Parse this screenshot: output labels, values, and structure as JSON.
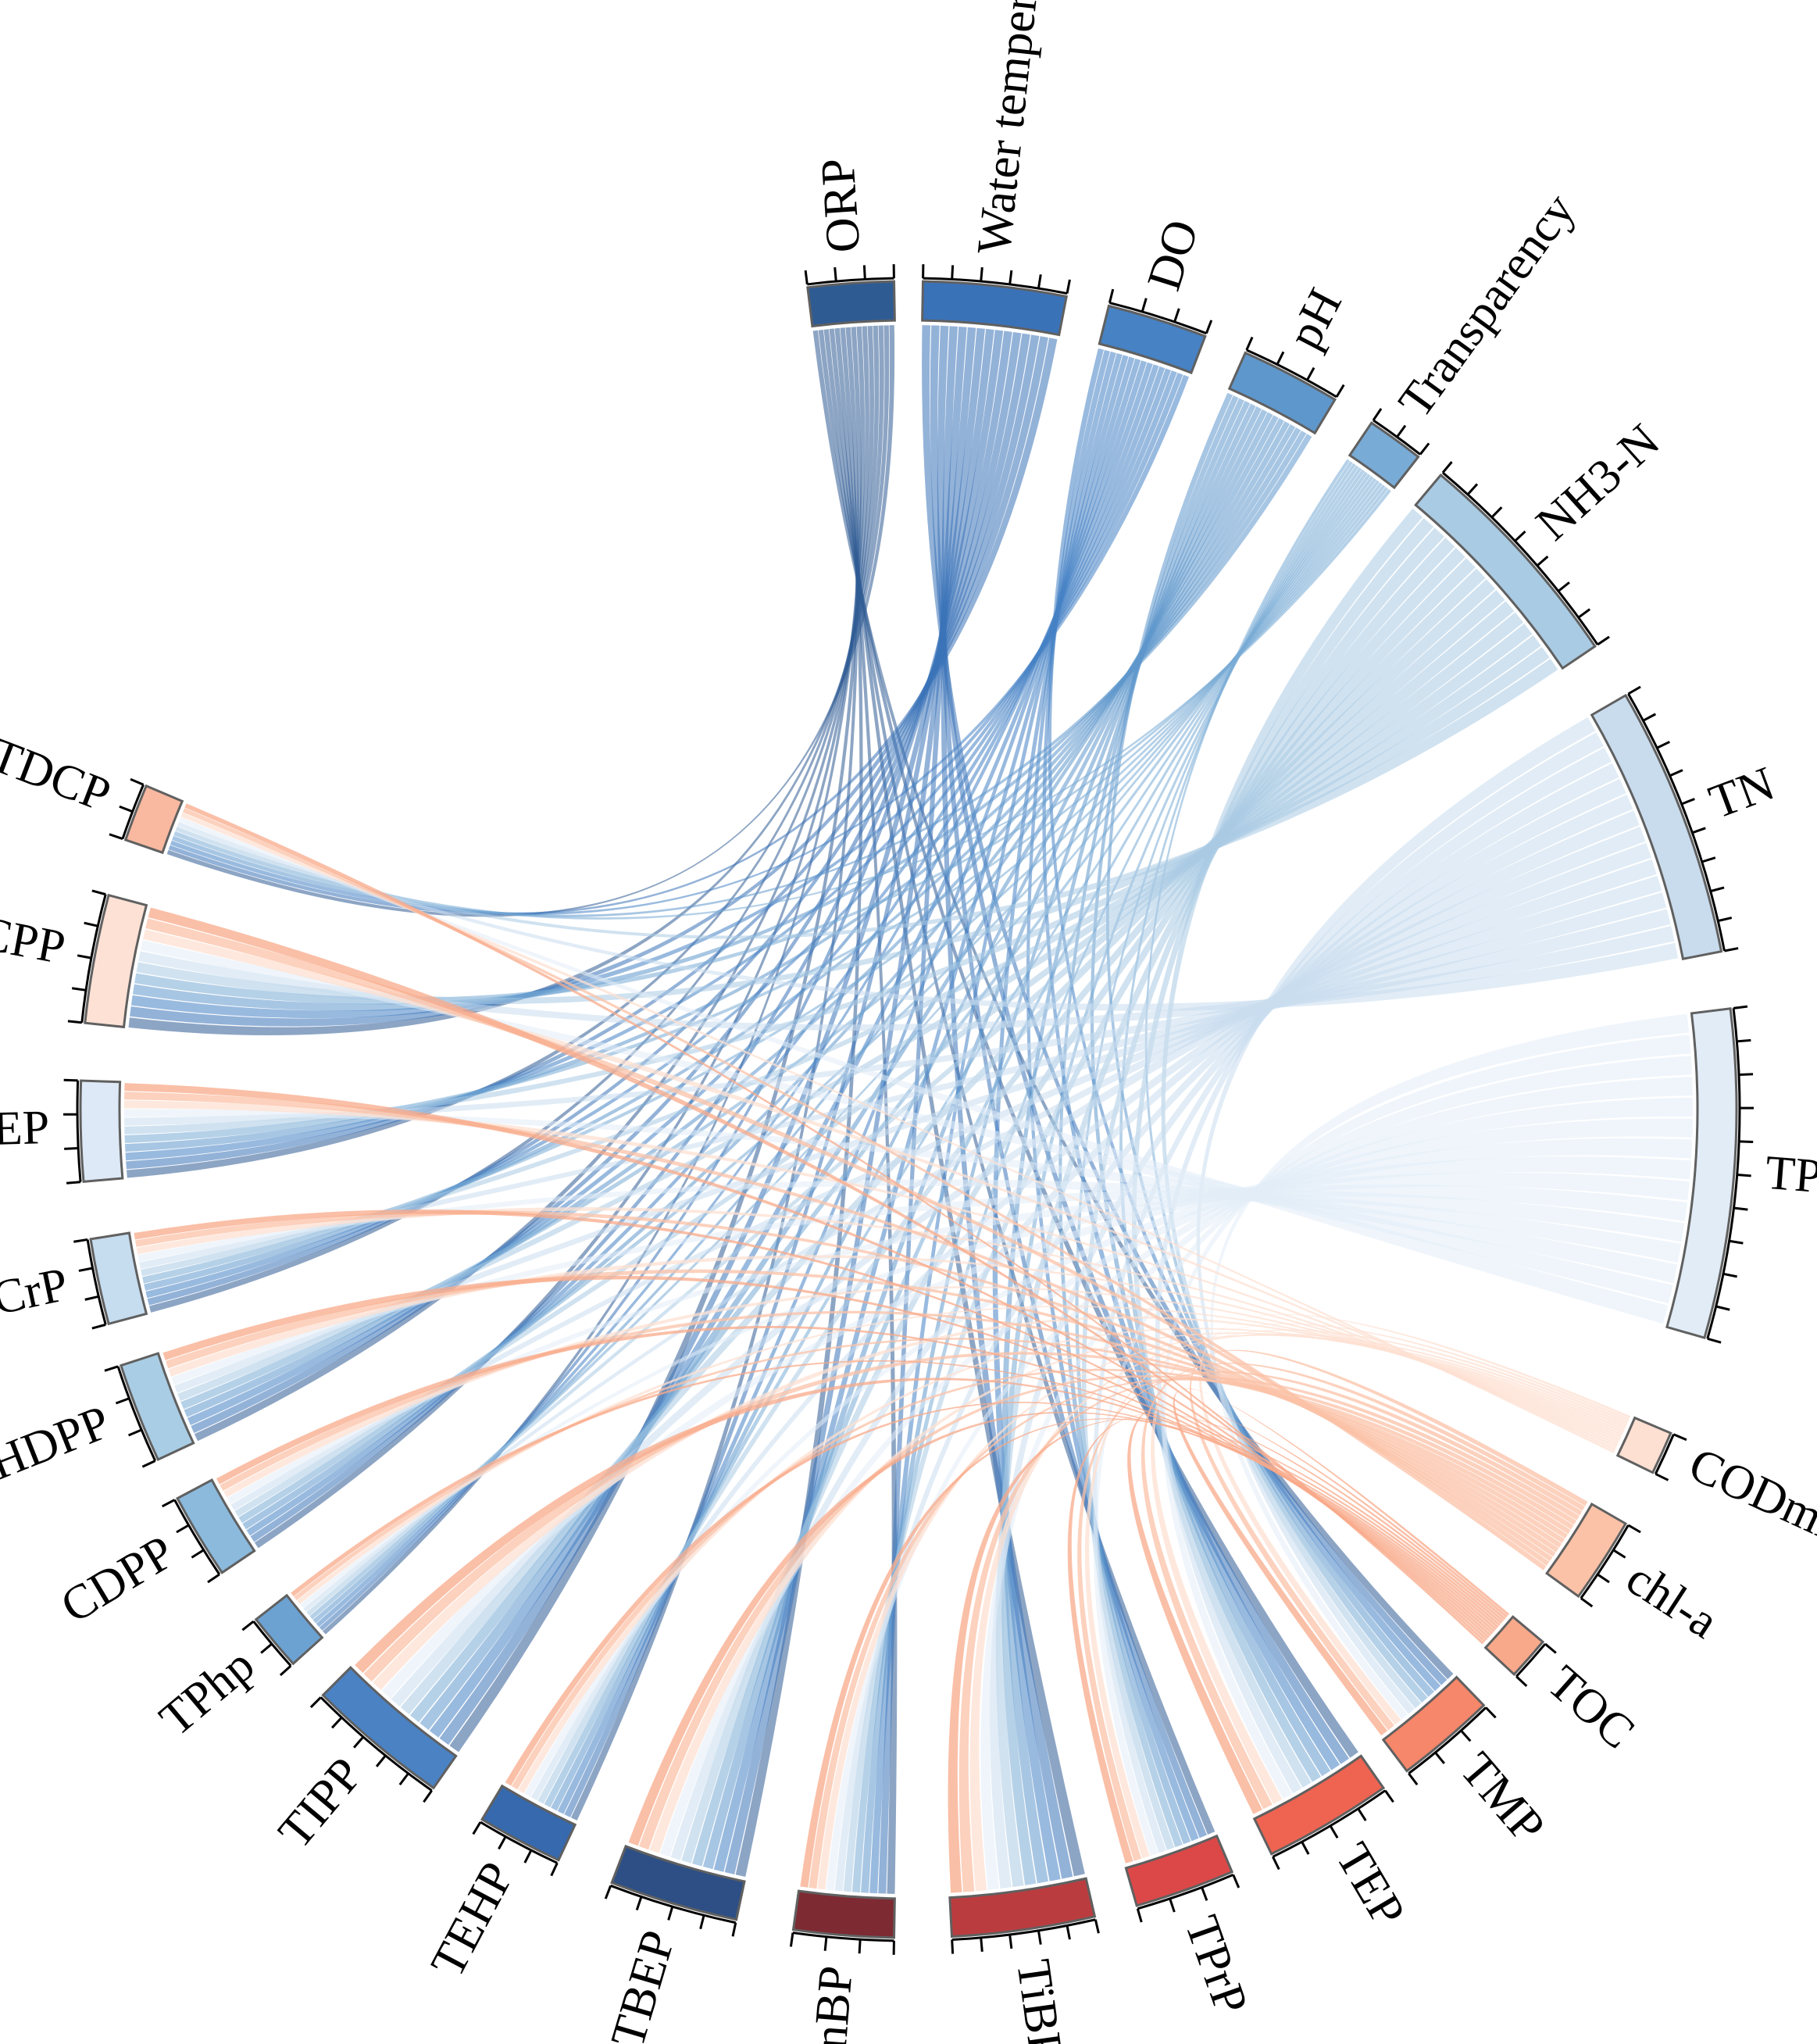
{
  "chart_data": {
    "type": "chord",
    "title": "",
    "segments": [
      {
        "name": "ORP",
        "color": "#2f5b93",
        "group": "environment"
      },
      {
        "name": "Water temperature",
        "color": "#3a72b8",
        "group": "environment"
      },
      {
        "name": "DO",
        "color": "#4682c4",
        "group": "environment"
      },
      {
        "name": "pH",
        "color": "#5e97cc",
        "group": "environment"
      },
      {
        "name": "Transparency",
        "color": "#78abd6",
        "group": "environment"
      },
      {
        "name": "NH3-N",
        "color": "#a9cbe3",
        "group": "environment"
      },
      {
        "name": "TN",
        "color": "#c9dcee",
        "group": "environment"
      },
      {
        "name": "TP",
        "color": "#e1ecf7",
        "group": "environment"
      },
      {
        "name": "CODmn",
        "color": "#fde0d2",
        "group": "environment"
      },
      {
        "name": "chl-a",
        "color": "#fbc2a7",
        "group": "environment"
      },
      {
        "name": "TOC",
        "color": "#f8a98a",
        "group": "environment"
      },
      {
        "name": "TMP",
        "color": "#f6876a",
        "group": "opfr"
      },
      {
        "name": "TEP",
        "color": "#ef6451",
        "group": "opfr"
      },
      {
        "name": "TPrP",
        "color": "#dc4848",
        "group": "opfr"
      },
      {
        "name": "TiBP",
        "color": "#bb3c3f",
        "group": "opfr"
      },
      {
        "name": "TnBP",
        "color": "#7e2a33",
        "group": "opfr"
      },
      {
        "name": "TBEP",
        "color": "#2d4f85",
        "group": "opfr"
      },
      {
        "name": "TEHP",
        "color": "#3669ad",
        "group": "opfr"
      },
      {
        "name": "TIPP",
        "color": "#4a82c3",
        "group": "opfr"
      },
      {
        "name": "TPhp",
        "color": "#6ca2d2",
        "group": "opfr"
      },
      {
        "name": "CDPP",
        "color": "#8bbadd",
        "group": "opfr"
      },
      {
        "name": "EHDPP",
        "color": "#a9cde4",
        "group": "opfr"
      },
      {
        "name": "TCrP",
        "color": "#c6dcef",
        "group": "opfr"
      },
      {
        "name": "TCEP",
        "color": "#dde9f6",
        "group": "opfr"
      },
      {
        "name": "TCPP",
        "color": "#fde1d5",
        "group": "opfr"
      },
      {
        "name": "TDCP",
        "color": "#f9b8a0",
        "group": "opfr"
      }
    ]
  }
}
